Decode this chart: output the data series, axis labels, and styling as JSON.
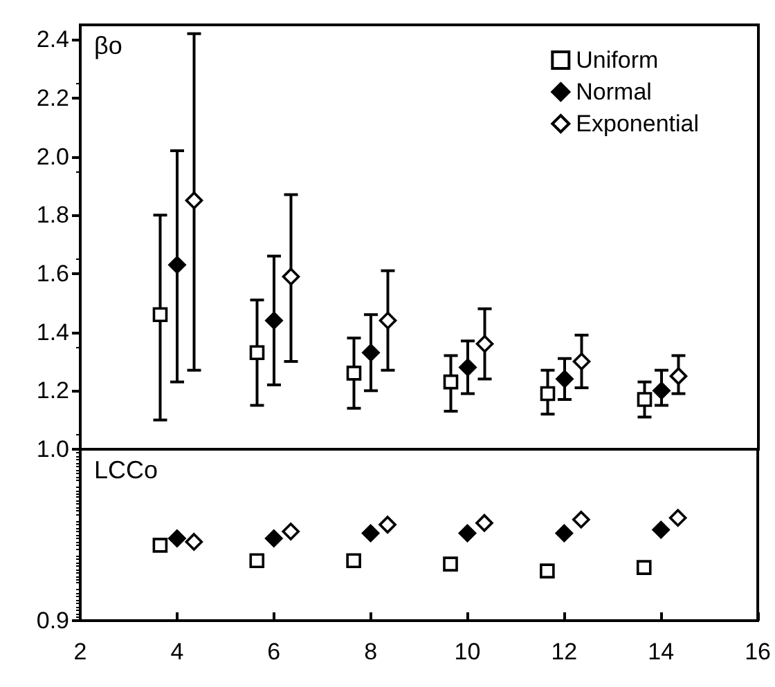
{
  "chart_data": [
    {
      "type": "scatter",
      "ylabel": "βo",
      "xlim": [
        2,
        16
      ],
      "ylim": [
        1.0,
        2.45
      ],
      "yticks": [
        1.2,
        1.4,
        1.6,
        1.8,
        {
          "value": 2,
          "label": "2.0"
        },
        2.2,
        2.4
      ],
      "tick_labels": "y",
      "legend": "top right",
      "grid": false,
      "series": [
        {
          "name": "Uniform",
          "color": "#ffffff",
          "marker": "square",
          "x": [
            3.65,
            5.65,
            7.65,
            9.65,
            11.65,
            13.65
          ],
          "values": [
            1.46,
            1.33,
            1.26,
            1.23,
            1.19,
            1.17
          ],
          "errors": [
            [
              1.1,
              1.8
            ],
            [
              1.15,
              1.51
            ],
            [
              1.14,
              1.38
            ],
            [
              1.13,
              1.32
            ],
            [
              1.12,
              1.27
            ],
            [
              1.11,
              1.23
            ]
          ]
        },
        {
          "name": "Normal",
          "color": "#000000",
          "marker": "diamond",
          "x": [
            4,
            6,
            8,
            10,
            12,
            14
          ],
          "values": [
            1.63,
            1.44,
            1.33,
            1.28,
            1.24,
            1.2
          ],
          "errors": [
            [
              1.23,
              2.02
            ],
            [
              1.22,
              1.66
            ],
            [
              1.2,
              1.46
            ],
            [
              1.19,
              1.37
            ],
            [
              1.17,
              1.31
            ],
            [
              1.15,
              1.27
            ]
          ]
        },
        {
          "name": "Exponential",
          "color": "#ffffff",
          "marker": "diamond",
          "x": [
            4.35,
            6.35,
            8.35,
            10.35,
            12.35,
            14.35
          ],
          "values": [
            1.85,
            1.59,
            1.44,
            1.36,
            1.3,
            1.25
          ],
          "errors": [
            [
              1.27,
              2.42
            ],
            [
              1.3,
              1.87
            ],
            [
              1.27,
              1.61
            ],
            [
              1.24,
              1.48
            ],
            [
              1.21,
              1.39
            ],
            [
              1.19,
              1.32
            ]
          ]
        }
      ]
    },
    {
      "type": "scatter",
      "ylabel": "LCCo",
      "xlim": [
        2,
        16
      ],
      "xticks": [
        2,
        4,
        6,
        8,
        10,
        12,
        14,
        16
      ],
      "ylim": [
        0.9,
        1.0
      ],
      "yticks": [
        0.9,
        {
          "value": 1,
          "label": "1.0"
        }
      ],
      "grid": false,
      "series": [
        {
          "color": "#ffffff",
          "marker": "square",
          "x": [
            3.65,
            5.65,
            7.65,
            9.65,
            11.65,
            13.65
          ],
          "values": [
            0.944,
            0.935,
            0.935,
            0.933,
            0.929,
            0.931
          ]
        },
        {
          "color": "#000000",
          "marker": "diamond",
          "x": [
            4,
            6,
            8,
            10,
            12,
            14
          ],
          "values": [
            0.948,
            0.948,
            0.951,
            0.951,
            0.951,
            0.953
          ]
        },
        {
          "color": "#ffffff",
          "marker": "diamond",
          "x": [
            4.35,
            6.35,
            8.35,
            10.35,
            12.35,
            14.35
          ],
          "values": [
            0.946,
            0.952,
            0.956,
            0.957,
            0.959,
            0.96
          ]
        }
      ]
    }
  ]
}
